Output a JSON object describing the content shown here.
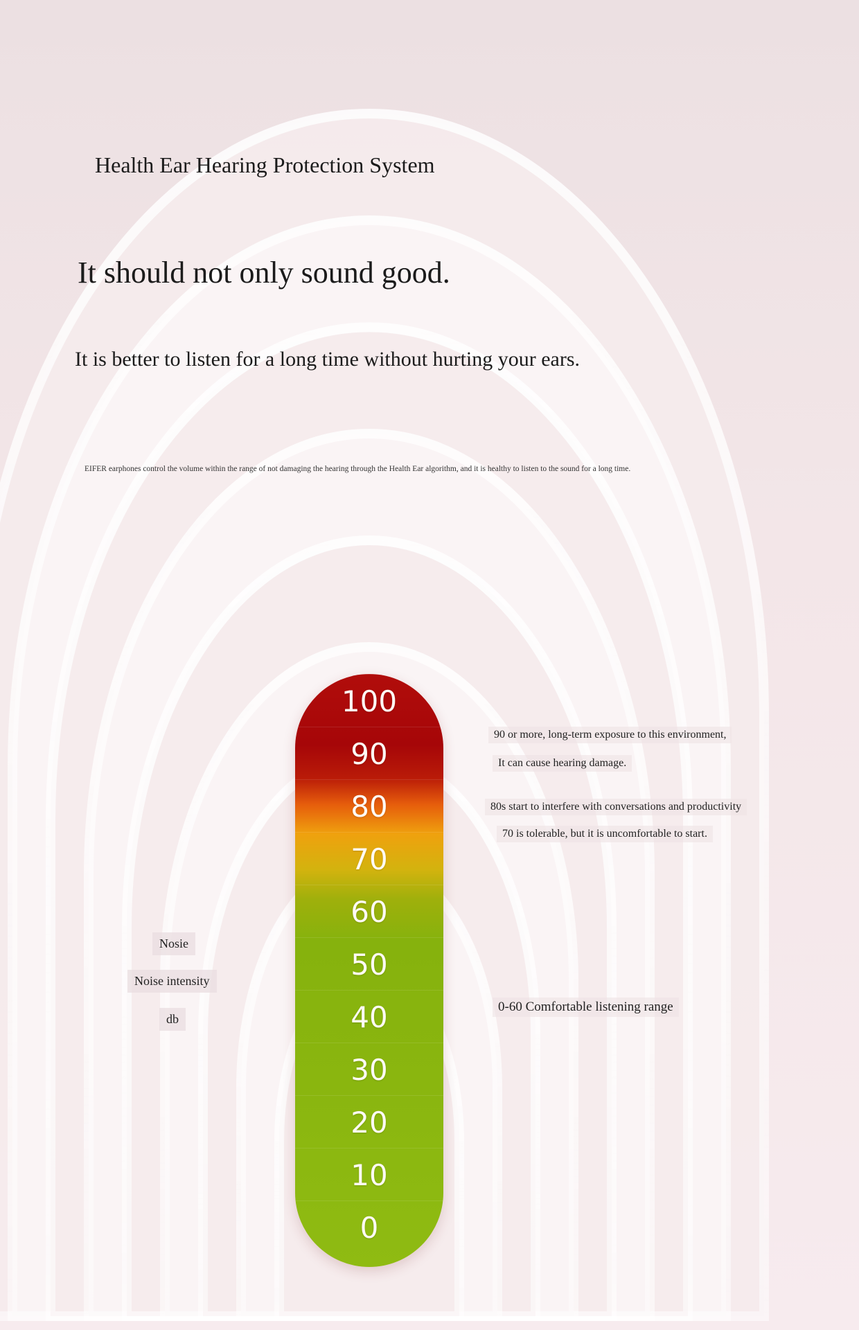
{
  "header": {
    "system_title": "Health Ear Hearing Protection System",
    "headline": "It should not only sound good.",
    "subline": "It is better to listen for a long time without hurting your ears.",
    "description": "EIFER earphones control the volume within the range of not damaging the hearing through the Health Ear algorithm, and it is healthy to listen to the sound for a long time."
  },
  "meter": {
    "levels": [
      "100",
      "90",
      "80",
      "70",
      "60",
      "50",
      "40",
      "30",
      "20",
      "10",
      "0"
    ]
  },
  "left_labels": {
    "line1": "Nosie",
    "line2": "Noise intensity",
    "line3": "db"
  },
  "notes": {
    "n90_line1": "90 or more, long-term exposure to this environment,",
    "n90_line2": "It can cause hearing damage.",
    "n80": "80s start to interfere with conversations and productivity",
    "n70": "70 is tolerable, but it is uncomfortable to start.",
    "comfort": "0-60 Comfortable listening range"
  },
  "colors": {
    "danger": "#a60608",
    "warning": "#e65d0c",
    "caution": "#efa10e",
    "safe": "#8fbb12"
  }
}
